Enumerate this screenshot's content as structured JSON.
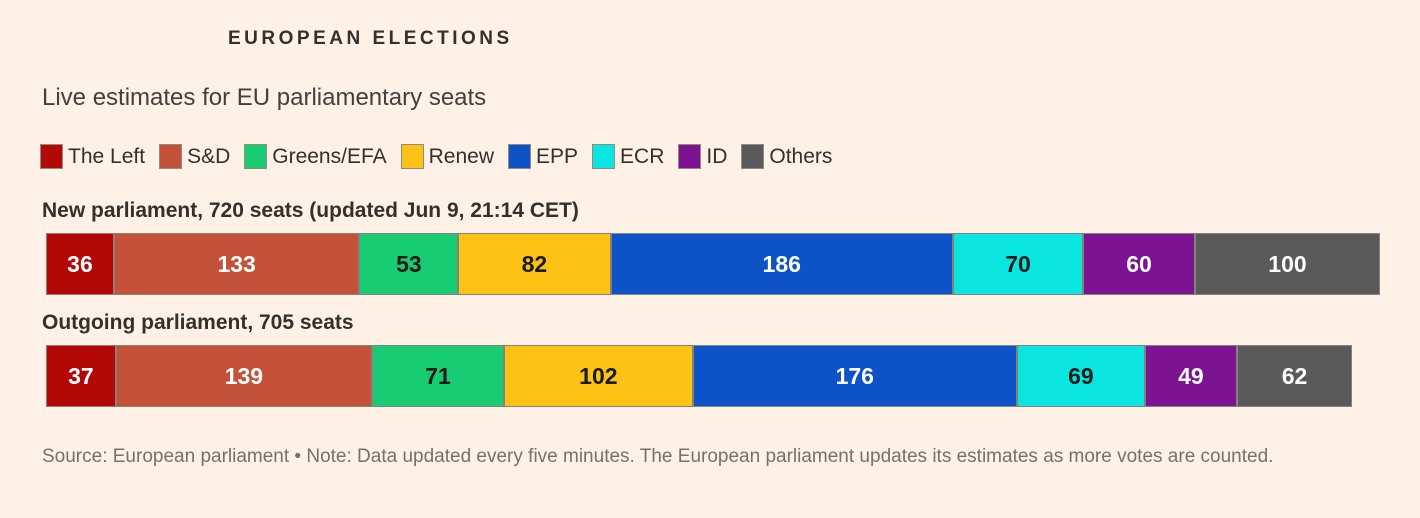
{
  "header": {
    "kicker": "EUROPEAN ELECTIONS",
    "title": "Live estimates for EU parliamentary seats"
  },
  "chart_data": {
    "type": "bar",
    "subtype": "horizontal-stacked",
    "legend_position": "top",
    "max_total": 720,
    "parties": [
      {
        "name": "The Left",
        "color": "#B20808",
        "text_color": "#FFFFFF"
      },
      {
        "name": "S&D",
        "color": "#C4513A",
        "text_color": "#FFFFFF"
      },
      {
        "name": "Greens/EFA",
        "color": "#17CC72",
        "text_color": "#1A1A1A"
      },
      {
        "name": "Renew",
        "color": "#FCC216",
        "text_color": "#1A1A1A"
      },
      {
        "name": "EPP",
        "color": "#0D53C7",
        "text_color": "#FFFFFF"
      },
      {
        "name": "ECR",
        "color": "#0BE5DF",
        "text_color": "#1A1A1A"
      },
      {
        "name": "ID",
        "color": "#7C1390",
        "text_color": "#FFFFFF"
      },
      {
        "name": "Others",
        "color": "#5A5A5A",
        "text_color": "#FFFFFF"
      }
    ],
    "bars": [
      {
        "heading": "New parliament, 720 seats (updated Jun 9, 21:14 CET)",
        "total": 720,
        "values": [
          36,
          133,
          53,
          82,
          186,
          70,
          60,
          100
        ]
      },
      {
        "heading": "Outgoing parliament, 705 seats",
        "total": 705,
        "values": [
          37,
          139,
          71,
          102,
          176,
          69,
          49,
          62
        ]
      }
    ]
  },
  "footer": {
    "source": "Source: European parliament • Note: Data updated every five minutes. The European parliament updates its estimates as more votes are counted."
  }
}
